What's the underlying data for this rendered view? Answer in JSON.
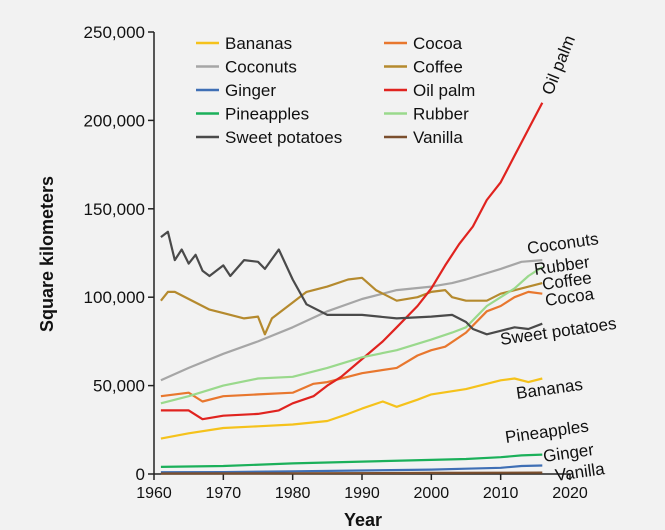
{
  "chart_data": {
    "type": "line",
    "title": "",
    "xlabel": "Year",
    "ylabel": "Square kilometers",
    "xlim": [
      1960,
      2020
    ],
    "ylim": [
      0,
      250000
    ],
    "x_ticks": [
      1960,
      1970,
      1980,
      1990,
      2000,
      2010,
      2020
    ],
    "x_tick_labels": [
      "1960",
      "1970",
      "1980",
      "1990",
      "2000",
      "2010",
      "2020"
    ],
    "y_ticks": [
      0,
      50000,
      100000,
      150000,
      200000,
      250000
    ],
    "y_tick_labels": [
      "0",
      "50,000",
      "100,000",
      "150,000",
      "200,000",
      "250,000"
    ],
    "grid": false,
    "legend_placement": "top",
    "legend_columns": 2,
    "legend_order": [
      "Bananas",
      "Cocoa",
      "Coconuts",
      "Coffee",
      "Ginger",
      "Oil palm",
      "Pineapples",
      "Rubber",
      "Sweet potatoes",
      "Vanilla"
    ],
    "series": [
      {
        "name": "Bananas",
        "color": "#f5c21b",
        "label": "Bananas",
        "points": [
          [
            1961,
            20000
          ],
          [
            1965,
            23000
          ],
          [
            1970,
            26000
          ],
          [
            1975,
            27000
          ],
          [
            1980,
            28000
          ],
          [
            1985,
            30000
          ],
          [
            1988,
            34000
          ],
          [
            1990,
            37000
          ],
          [
            1993,
            41000
          ],
          [
            1995,
            38000
          ],
          [
            1998,
            42000
          ],
          [
            2000,
            45000
          ],
          [
            2005,
            48000
          ],
          [
            2008,
            51000
          ],
          [
            2010,
            53000
          ],
          [
            2012,
            54000
          ],
          [
            2014,
            52000
          ],
          [
            2016,
            54000
          ]
        ]
      },
      {
        "name": "Cocoa",
        "color": "#e8772e",
        "label": "Cocoa",
        "points": [
          [
            1961,
            44000
          ],
          [
            1965,
            46000
          ],
          [
            1967,
            41000
          ],
          [
            1970,
            44000
          ],
          [
            1975,
            45000
          ],
          [
            1980,
            46000
          ],
          [
            1983,
            51000
          ],
          [
            1985,
            52000
          ],
          [
            1990,
            57000
          ],
          [
            1995,
            60000
          ],
          [
            1998,
            67000
          ],
          [
            2000,
            70000
          ],
          [
            2002,
            72000
          ],
          [
            2005,
            80000
          ],
          [
            2008,
            92000
          ],
          [
            2010,
            95000
          ],
          [
            2012,
            100000
          ],
          [
            2014,
            103000
          ],
          [
            2016,
            102000
          ]
        ]
      },
      {
        "name": "Coconuts",
        "color": "#a6a6a6",
        "label": "Coconuts",
        "points": [
          [
            1961,
            53000
          ],
          [
            1965,
            60000
          ],
          [
            1970,
            68000
          ],
          [
            1975,
            75000
          ],
          [
            1980,
            83000
          ],
          [
            1985,
            92000
          ],
          [
            1990,
            99000
          ],
          [
            1995,
            104000
          ],
          [
            2000,
            106000
          ],
          [
            2003,
            108000
          ],
          [
            2005,
            110000
          ],
          [
            2010,
            116000
          ],
          [
            2013,
            120000
          ],
          [
            2016,
            121000
          ]
        ]
      },
      {
        "name": "Coffee",
        "color": "#b58a2e",
        "label": "Coffee",
        "points": [
          [
            1961,
            98000
          ],
          [
            1962,
            103000
          ],
          [
            1963,
            103000
          ],
          [
            1965,
            99000
          ],
          [
            1968,
            93000
          ],
          [
            1970,
            91000
          ],
          [
            1973,
            88000
          ],
          [
            1975,
            89000
          ],
          [
            1976,
            79000
          ],
          [
            1977,
            88000
          ],
          [
            1980,
            97000
          ],
          [
            1982,
            103000
          ],
          [
            1985,
            106000
          ],
          [
            1988,
            110000
          ],
          [
            1990,
            111000
          ],
          [
            1992,
            104000
          ],
          [
            1995,
            98000
          ],
          [
            1998,
            100000
          ],
          [
            2000,
            103000
          ],
          [
            2002,
            104000
          ],
          [
            2003,
            100000
          ],
          [
            2005,
            98000
          ],
          [
            2008,
            98000
          ],
          [
            2010,
            102000
          ],
          [
            2013,
            105000
          ],
          [
            2016,
            108000
          ]
        ]
      },
      {
        "name": "Ginger",
        "color": "#3f6fb5",
        "label": "Ginger",
        "points": [
          [
            1961,
            1000
          ],
          [
            1970,
            1100
          ],
          [
            1980,
            1500
          ],
          [
            1990,
            2000
          ],
          [
            2000,
            2500
          ],
          [
            2005,
            3000
          ],
          [
            2010,
            3500
          ],
          [
            2013,
            4500
          ],
          [
            2016,
            4800
          ]
        ]
      },
      {
        "name": "Oil palm",
        "color": "#e0231f",
        "label": "Oil palm",
        "points": [
          [
            1961,
            36000
          ],
          [
            1965,
            36000
          ],
          [
            1967,
            31000
          ],
          [
            1970,
            33000
          ],
          [
            1975,
            34000
          ],
          [
            1978,
            36000
          ],
          [
            1980,
            40000
          ],
          [
            1983,
            44000
          ],
          [
            1985,
            50000
          ],
          [
            1987,
            55000
          ],
          [
            1990,
            65000
          ],
          [
            1993,
            75000
          ],
          [
            1995,
            83000
          ],
          [
            1998,
            95000
          ],
          [
            2000,
            105000
          ],
          [
            2002,
            118000
          ],
          [
            2004,
            130000
          ],
          [
            2006,
            140000
          ],
          [
            2008,
            155000
          ],
          [
            2010,
            165000
          ],
          [
            2012,
            180000
          ],
          [
            2014,
            195000
          ],
          [
            2016,
            210000
          ]
        ]
      },
      {
        "name": "Pineapples",
        "color": "#1bb05a",
        "label": "Pineapples",
        "points": [
          [
            1961,
            4000
          ],
          [
            1970,
            4500
          ],
          [
            1980,
            6000
          ],
          [
            1990,
            7000
          ],
          [
            2000,
            8000
          ],
          [
            2005,
            8500
          ],
          [
            2010,
            9500
          ],
          [
            2013,
            10500
          ],
          [
            2016,
            11000
          ]
        ]
      },
      {
        "name": "Rubber",
        "color": "#9ad98c",
        "label": "Rubber",
        "points": [
          [
            1961,
            40000
          ],
          [
            1965,
            44000
          ],
          [
            1970,
            50000
          ],
          [
            1975,
            54000
          ],
          [
            1980,
            55000
          ],
          [
            1985,
            60000
          ],
          [
            1990,
            66000
          ],
          [
            1995,
            70000
          ],
          [
            2000,
            76000
          ],
          [
            2003,
            80000
          ],
          [
            2005,
            83000
          ],
          [
            2008,
            95000
          ],
          [
            2010,
            100000
          ],
          [
            2012,
            105000
          ],
          [
            2014,
            112000
          ],
          [
            2016,
            117000
          ]
        ]
      },
      {
        "name": "Sweet potatoes",
        "color": "#4a4a4a",
        "label": "Sweet potatoes",
        "points": [
          [
            1961,
            134000
          ],
          [
            1962,
            137000
          ],
          [
            1963,
            121000
          ],
          [
            1964,
            127000
          ],
          [
            1965,
            119000
          ],
          [
            1966,
            124000
          ],
          [
            1967,
            115000
          ],
          [
            1968,
            112000
          ],
          [
            1970,
            118000
          ],
          [
            1971,
            112000
          ],
          [
            1973,
            121000
          ],
          [
            1975,
            120000
          ],
          [
            1976,
            116000
          ],
          [
            1978,
            127000
          ],
          [
            1980,
            110000
          ],
          [
            1982,
            96000
          ],
          [
            1985,
            90000
          ],
          [
            1990,
            90000
          ],
          [
            1995,
            88000
          ],
          [
            2000,
            89000
          ],
          [
            2003,
            90000
          ],
          [
            2005,
            86000
          ],
          [
            2006,
            82000
          ],
          [
            2008,
            79000
          ],
          [
            2010,
            81000
          ],
          [
            2012,
            83000
          ],
          [
            2014,
            82000
          ],
          [
            2016,
            85000
          ]
        ]
      },
      {
        "name": "Vanilla",
        "color": "#7b4f2e",
        "label": "Vanilla",
        "points": [
          [
            1961,
            300
          ],
          [
            1980,
            400
          ],
          [
            2000,
            600
          ],
          [
            2016,
            800
          ]
        ]
      }
    ]
  }
}
